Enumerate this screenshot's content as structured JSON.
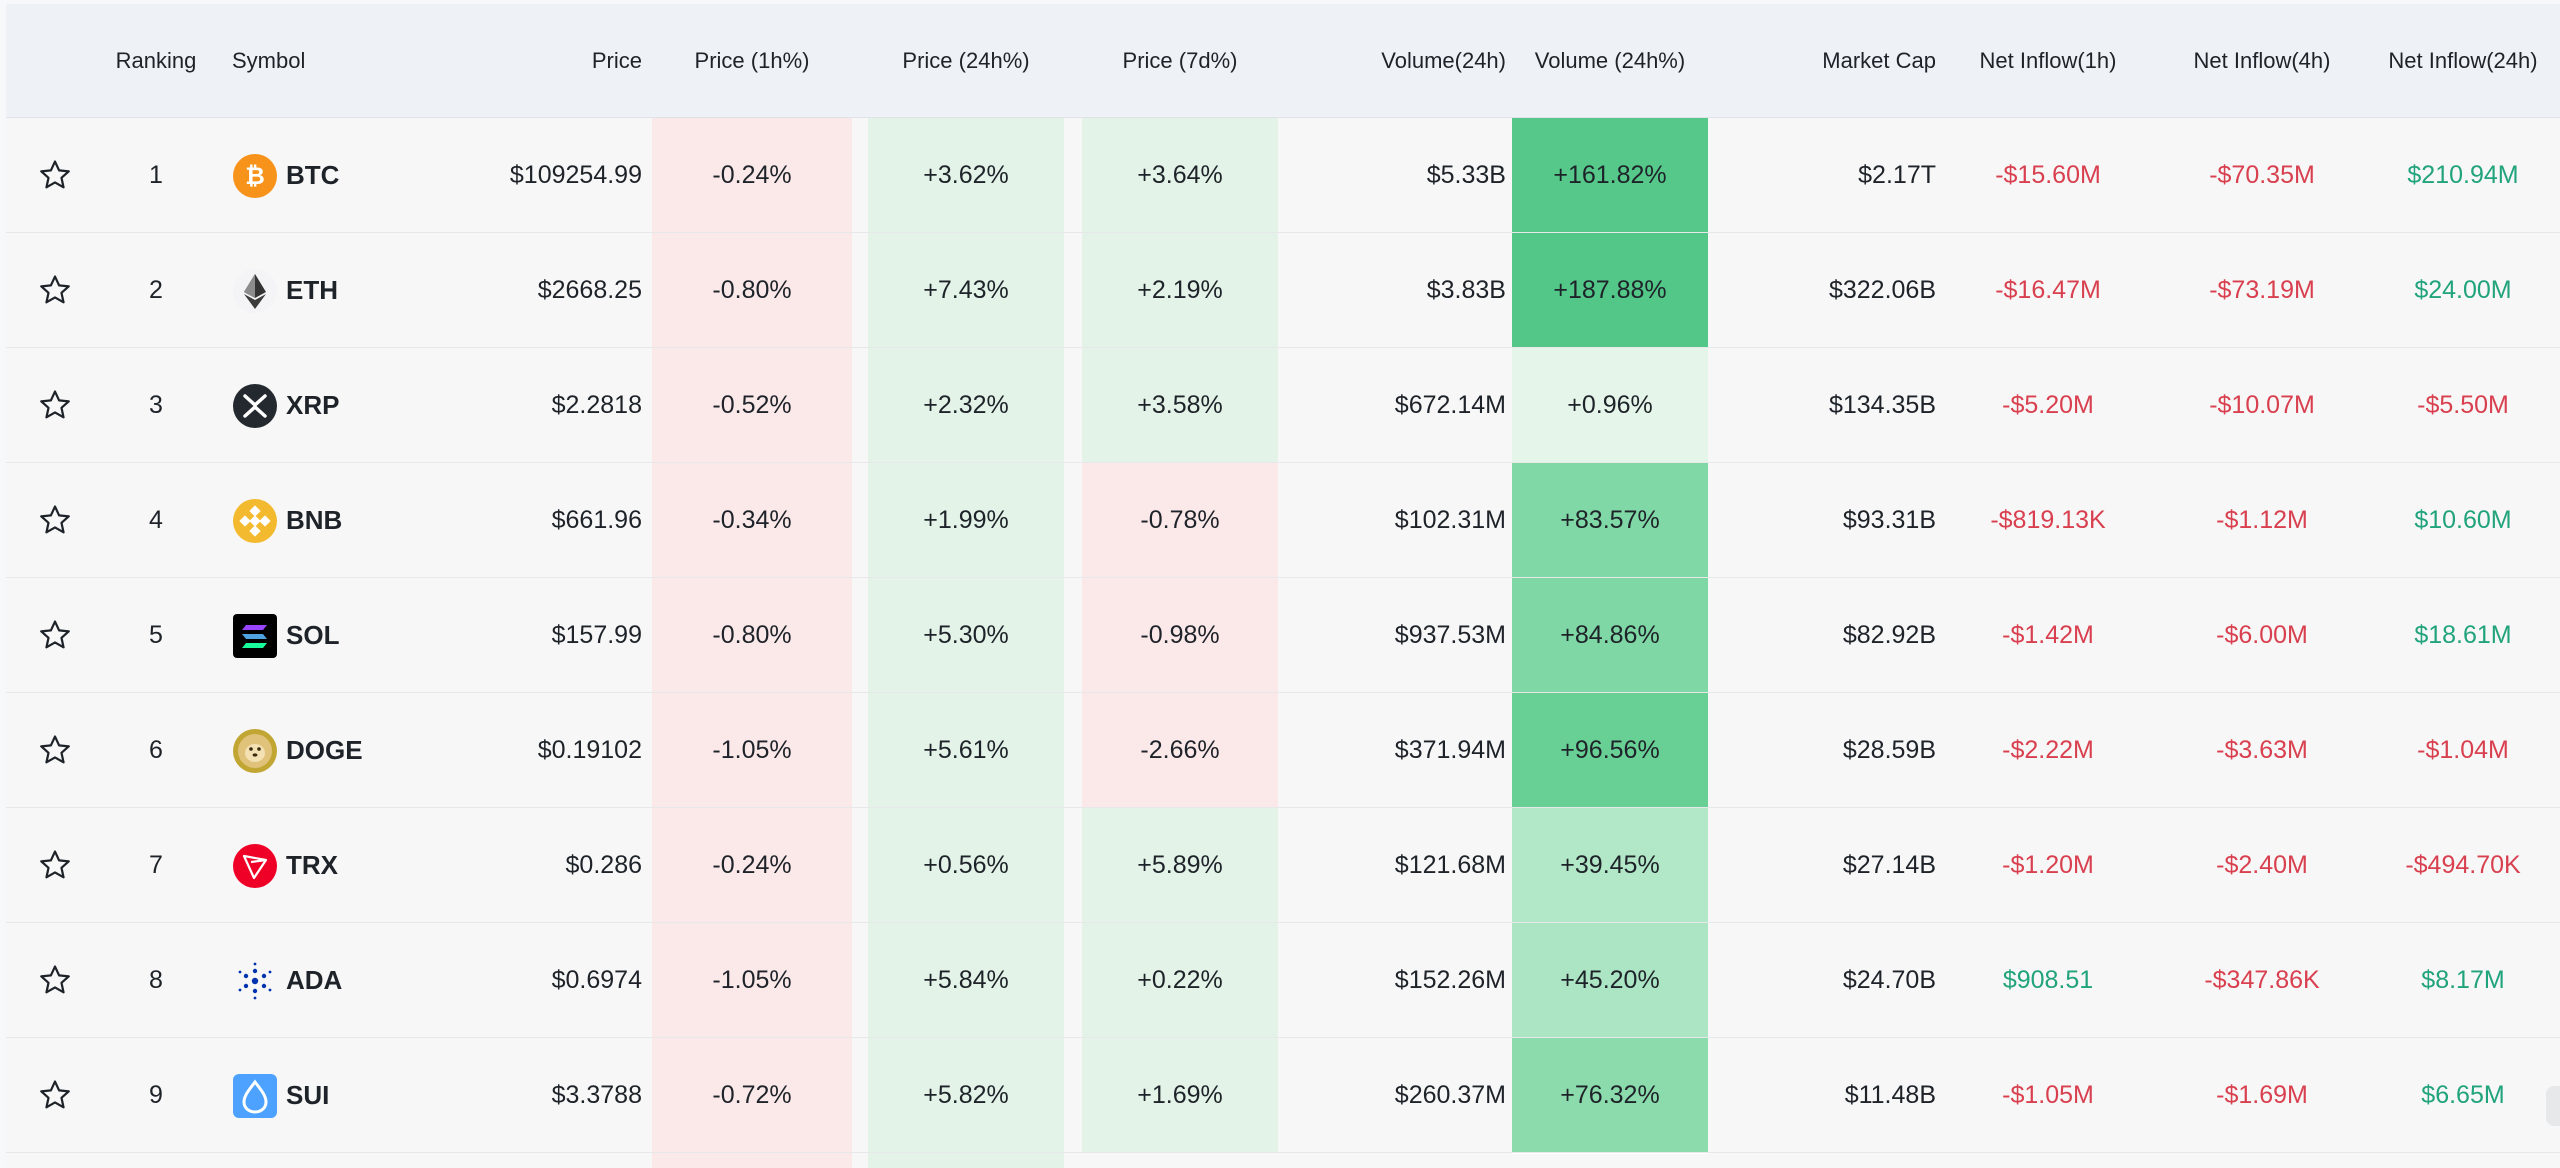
{
  "headers": {
    "ranking": "Ranking",
    "symbol": "Symbol",
    "price": "Price",
    "price_1h": "Price (1h%)",
    "price_24h": "Price (24h%)",
    "price_7d": "Price (7d%)",
    "volume_24h": "Volume(24h)",
    "volume_24h_pct": "Volume (24h%)",
    "market_cap": "Market Cap",
    "net_inflow_1h": "Net Inflow(1h)",
    "net_inflow_4h": "Net Inflow(4h)",
    "net_inflow_24h": "Net Inflow(24h)"
  },
  "colors": {
    "negative_text": "#d9404f",
    "positive_text": "#21a37c",
    "price_1h_bg": "#fbe9ea",
    "price_24h_bg": "#e3f3e8",
    "volume_strong": "#5dcc8f",
    "volume_light": "#e6f5ea"
  },
  "rows": [
    {
      "rank": "1",
      "symbol": "BTC",
      "icon": "btc-icon",
      "price": "$109254.99",
      "p1h": "-0.24%",
      "p24h": "+3.62%",
      "p7d": "+3.64%",
      "vol": "$5.33B",
      "vol_pct": "+161.82%",
      "mcap": "$2.17T",
      "in1h": "-$15.60M",
      "in4h": "-$70.35M",
      "in24h": "$210.94M"
    },
    {
      "rank": "2",
      "symbol": "ETH",
      "icon": "eth-icon",
      "price": "$2668.25",
      "p1h": "-0.80%",
      "p24h": "+7.43%",
      "p7d": "+2.19%",
      "vol": "$3.83B",
      "vol_pct": "+187.88%",
      "mcap": "$322.06B",
      "in1h": "-$16.47M",
      "in4h": "-$73.19M",
      "in24h": "$24.00M"
    },
    {
      "rank": "3",
      "symbol": "XRP",
      "icon": "xrp-icon",
      "price": "$2.2818",
      "p1h": "-0.52%",
      "p24h": "+2.32%",
      "p7d": "+3.58%",
      "vol": "$672.14M",
      "vol_pct": "+0.96%",
      "mcap": "$134.35B",
      "in1h": "-$5.20M",
      "in4h": "-$10.07M",
      "in24h": "-$5.50M"
    },
    {
      "rank": "4",
      "symbol": "BNB",
      "icon": "bnb-icon",
      "price": "$661.96",
      "p1h": "-0.34%",
      "p24h": "+1.99%",
      "p7d": "-0.78%",
      "vol": "$102.31M",
      "vol_pct": "+83.57%",
      "mcap": "$93.31B",
      "in1h": "-$819.13K",
      "in4h": "-$1.12M",
      "in24h": "$10.60M"
    },
    {
      "rank": "5",
      "symbol": "SOL",
      "icon": "sol-icon",
      "price": "$157.99",
      "p1h": "-0.80%",
      "p24h": "+5.30%",
      "p7d": "-0.98%",
      "vol": "$937.53M",
      "vol_pct": "+84.86%",
      "mcap": "$82.92B",
      "in1h": "-$1.42M",
      "in4h": "-$6.00M",
      "in24h": "$18.61M"
    },
    {
      "rank": "6",
      "symbol": "DOGE",
      "icon": "doge-icon",
      "price": "$0.19102",
      "p1h": "-1.05%",
      "p24h": "+5.61%",
      "p7d": "-2.66%",
      "vol": "$371.94M",
      "vol_pct": "+96.56%",
      "mcap": "$28.59B",
      "in1h": "-$2.22M",
      "in4h": "-$3.63M",
      "in24h": "-$1.04M"
    },
    {
      "rank": "7",
      "symbol": "TRX",
      "icon": "trx-icon",
      "price": "$0.286",
      "p1h": "-0.24%",
      "p24h": "+0.56%",
      "p7d": "+5.89%",
      "vol": "$121.68M",
      "vol_pct": "+39.45%",
      "mcap": "$27.14B",
      "in1h": "-$1.20M",
      "in4h": "-$2.40M",
      "in24h": "-$494.70K"
    },
    {
      "rank": "8",
      "symbol": "ADA",
      "icon": "ada-icon",
      "price": "$0.6974",
      "p1h": "-1.05%",
      "p24h": "+5.84%",
      "p7d": "+0.22%",
      "vol": "$152.26M",
      "vol_pct": "+45.20%",
      "mcap": "$24.70B",
      "in1h": "$908.51",
      "in4h": "-$347.86K",
      "in24h": "$8.17M"
    },
    {
      "rank": "9",
      "symbol": "SUI",
      "icon": "sui-icon",
      "price": "$3.3788",
      "p1h": "-0.72%",
      "p24h": "+5.82%",
      "p7d": "+1.69%",
      "vol": "$260.37M",
      "vol_pct": "+76.32%",
      "mcap": "$11.48B",
      "in1h": "-$1.05M",
      "in4h": "-$1.69M",
      "in24h": "$6.65M"
    }
  ]
}
